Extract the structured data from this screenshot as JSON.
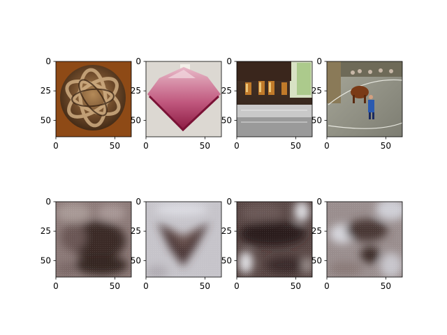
{
  "figure": {
    "title": "",
    "background": "#ffffff",
    "axis_color": "#000000"
  },
  "chart_data": [
    {
      "type": "heatmap",
      "row": 1,
      "col": 1,
      "content": "rattan-ball",
      "xlim": [
        0,
        64
      ],
      "ylim": [
        64,
        0
      ],
      "xticks": [
        0,
        50
      ],
      "yticks": [
        0,
        25,
        50
      ]
    },
    {
      "type": "heatmap",
      "row": 1,
      "col": 2,
      "content": "poncho",
      "xlim": [
        0,
        64
      ],
      "ylim": [
        64,
        0
      ],
      "xticks": [
        0,
        50
      ],
      "yticks": [
        0,
        25,
        50
      ]
    },
    {
      "type": "heatmap",
      "row": 1,
      "col": 3,
      "content": "glasses",
      "xlim": [
        0,
        64
      ],
      "ylim": [
        64,
        0
      ],
      "xticks": [
        0,
        50
      ],
      "yticks": [
        0,
        25,
        50
      ]
    },
    {
      "type": "heatmap",
      "row": 1,
      "col": 4,
      "content": "horse-arena",
      "xlim": [
        0,
        64
      ],
      "ylim": [
        64,
        0
      ],
      "xticks": [
        0,
        50
      ],
      "yticks": [
        0,
        25,
        50
      ]
    },
    {
      "type": "heatmap",
      "row": 2,
      "col": 1,
      "content": "recon-1",
      "xlim": [
        0,
        64
      ],
      "ylim": [
        64,
        0
      ],
      "xticks": [
        0,
        50
      ],
      "yticks": [
        0,
        25,
        50
      ]
    },
    {
      "type": "heatmap",
      "row": 2,
      "col": 2,
      "content": "recon-2",
      "xlim": [
        0,
        64
      ],
      "ylim": [
        64,
        0
      ],
      "xticks": [
        0,
        50
      ],
      "yticks": [
        0,
        25,
        50
      ]
    },
    {
      "type": "heatmap",
      "row": 2,
      "col": 3,
      "content": "recon-3",
      "xlim": [
        0,
        64
      ],
      "ylim": [
        64,
        0
      ],
      "xticks": [
        0,
        50
      ],
      "yticks": [
        0,
        25,
        50
      ]
    },
    {
      "type": "heatmap",
      "row": 2,
      "col": 4,
      "content": "recon-4",
      "xlim": [
        0,
        64
      ],
      "ylim": [
        64,
        0
      ],
      "xticks": [
        0,
        50
      ],
      "yticks": [
        0,
        25,
        50
      ]
    }
  ]
}
